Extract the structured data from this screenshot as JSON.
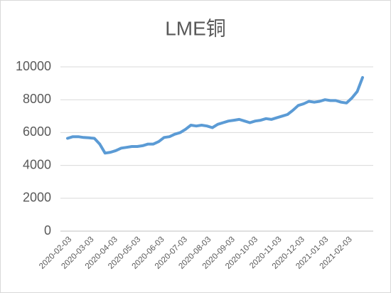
{
  "chart_data": {
    "type": "line",
    "title": "LME铜",
    "x": [
      "2020-02-03",
      "2020-02-10",
      "2020-02-17",
      "2020-02-24",
      "2020-03-02",
      "2020-03-09",
      "2020-03-16",
      "2020-03-23",
      "2020-03-30",
      "2020-04-06",
      "2020-04-13",
      "2020-04-20",
      "2020-04-27",
      "2020-05-04",
      "2020-05-11",
      "2020-05-18",
      "2020-05-25",
      "2020-06-01",
      "2020-06-08",
      "2020-06-15",
      "2020-06-22",
      "2020-06-29",
      "2020-07-06",
      "2020-07-13",
      "2020-07-20",
      "2020-07-27",
      "2020-08-03",
      "2020-08-10",
      "2020-08-17",
      "2020-08-24",
      "2020-08-31",
      "2020-09-07",
      "2020-09-14",
      "2020-09-21",
      "2020-09-28",
      "2020-10-05",
      "2020-10-12",
      "2020-10-19",
      "2020-10-26",
      "2020-11-02",
      "2020-11-09",
      "2020-11-16",
      "2020-11-23",
      "2020-11-30",
      "2020-12-07",
      "2020-12-14",
      "2020-12-21",
      "2020-12-28",
      "2021-01-04",
      "2021-01-11",
      "2021-01-18",
      "2021-01-25",
      "2021-02-01",
      "2021-02-08",
      "2021-02-15",
      "2021-02-22"
    ],
    "series": [
      {
        "name": "LME铜",
        "color": "#5b9bd5",
        "values": [
          5650,
          5750,
          5750,
          5700,
          5680,
          5650,
          5300,
          4750,
          4800,
          4900,
          5050,
          5100,
          5150,
          5150,
          5200,
          5300,
          5300,
          5450,
          5700,
          5750,
          5900,
          6000,
          6200,
          6450,
          6400,
          6450,
          6400,
          6300,
          6500,
          6600,
          6700,
          6750,
          6800,
          6700,
          6600,
          6700,
          6750,
          6850,
          6800,
          6900,
          7000,
          7100,
          7350,
          7650,
          7750,
          7900,
          7850,
          7900,
          8000,
          7950,
          7950,
          7850,
          7800,
          8100,
          8500,
          9350
        ]
      }
    ],
    "xlim": [
      "2020-02-03",
      "2021-02-22"
    ],
    "xticks": [
      "2020-02-03",
      "2020-03-03",
      "2020-04-03",
      "2020-05-03",
      "2020-06-03",
      "2020-07-03",
      "2020-08-03",
      "2020-09-03",
      "2020-10-03",
      "2020-11-03",
      "2020-12-03",
      "2021-01-03",
      "2021-02-03"
    ],
    "ylim": [
      0,
      10000
    ],
    "yticks": [
      0,
      2000,
      4000,
      6000,
      8000,
      10000
    ],
    "grid": true
  }
}
